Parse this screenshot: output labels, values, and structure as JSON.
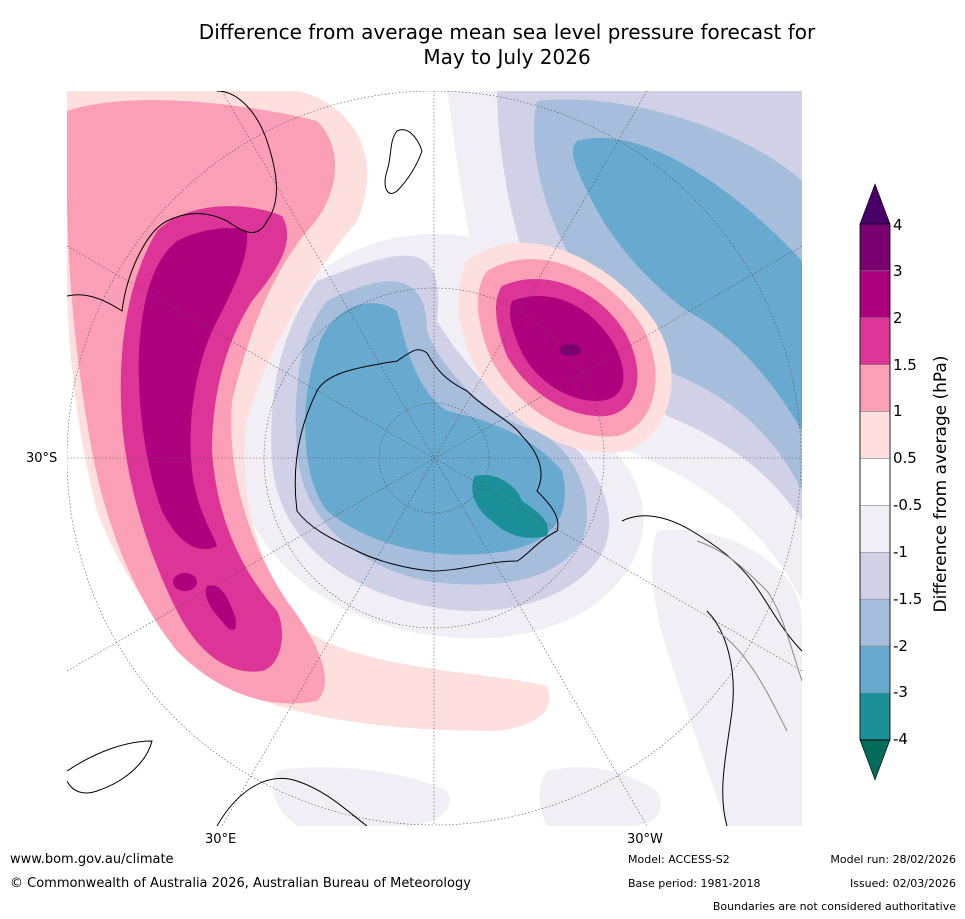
{
  "title": {
    "line1": "Difference from average mean sea level pressure forecast for",
    "line2": "May to July 2026"
  },
  "map": {
    "projection": "south-polar-stereographic",
    "labels": {
      "lat_left": "30°S",
      "lon_bottom_left": "30°E",
      "lon_bottom_right": "30°W"
    },
    "regions": [
      {
        "name": "central-antarctica-low",
        "level": "-3"
      },
      {
        "name": "weddell-sea-low",
        "level": "-4"
      },
      {
        "name": "south-atlantic-high",
        "level": "3"
      },
      {
        "name": "south-atlantic-high-core",
        "level": "4"
      },
      {
        "name": "indian-ocean-high",
        "level": "3"
      },
      {
        "name": "south-pacific-low-band",
        "level": "-3"
      }
    ]
  },
  "colorbar": {
    "title": "Difference from average (hPa)",
    "ticks": [
      "4",
      "3",
      "2",
      "1.5",
      "1",
      "0.5",
      "-0.5",
      "-1",
      "-1.5",
      "-2",
      "-3",
      "-4"
    ],
    "bins": [
      {
        "label": "4 to 3",
        "color": "#7a0170"
      },
      {
        "label": "3 to 2",
        "color": "#ae017e"
      },
      {
        "label": "2 to 1.5",
        "color": "#dd3497"
      },
      {
        "label": "1.5 to 1",
        "color": "#fa9fb5"
      },
      {
        "label": "1 to 0.5",
        "color": "#fde0dd"
      },
      {
        "label": "0.5 to -0.5",
        "color": "#ffffff"
      },
      {
        "label": "-0.5 to -1",
        "color": "#f2eef6"
      },
      {
        "label": "-1 to -1.5",
        "color": "#d0d1e6"
      },
      {
        "label": "-1.5 to -2",
        "color": "#a6bddb"
      },
      {
        "label": "-2 to -3",
        "color": "#67a9cf"
      },
      {
        "label": "-3 to -4",
        "color": "#1c9099"
      }
    ],
    "over_color": "#49006a",
    "under_color": "#016c59"
  },
  "footer": {
    "website": "www.bom.gov.au/climate",
    "copyright": "© Commonwealth of Australia 2026, Australian Bureau of Meteorology",
    "model": "Model: ACCESS-S2",
    "base_period": "Base period: 1981-2018",
    "model_run": "Model run: 28/02/2026",
    "issued": "Issued: 02/03/2026",
    "disclaimer": "Boundaries are not considered authoritative"
  }
}
